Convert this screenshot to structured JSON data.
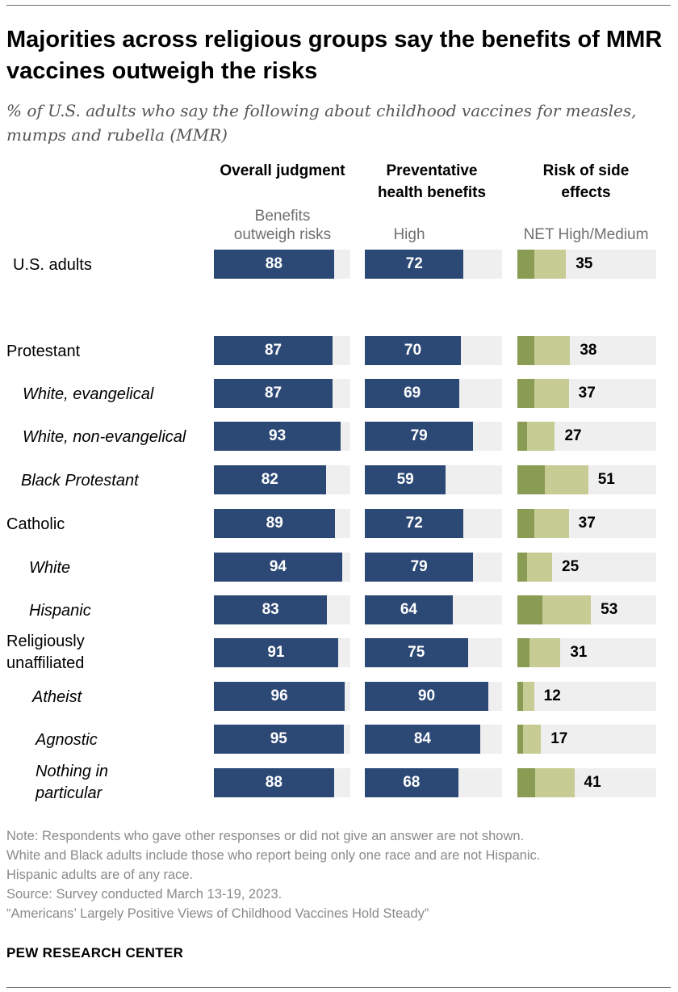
{
  "title": "Majorities across religious groups say the benefits of MMR vaccines outweigh the risks",
  "subtitle": "% of U.S. adults who say the following about childhood vaccines for measles, mumps and rubella (MMR)",
  "colors": {
    "primary_bar": "#2c4875",
    "risk_high": "#8a9b53",
    "risk_medium": "#c6cc94",
    "track": "#efefef"
  },
  "chart_data": {
    "type": "bar",
    "columns": [
      {
        "header": "Overall judgment",
        "sublabel": "Benefits\noutweigh risks"
      },
      {
        "header": "Preventative\nhealth benefits",
        "sublabel": "High"
      },
      {
        "header": "Risk of side\neffects",
        "sublabel": "NET High/Medium"
      }
    ],
    "categories": [
      "U.S. adults",
      "Protestant",
      "White, evangelical",
      "White, non-evangelical",
      "Black Protestant",
      "Catholic",
      "White",
      "Hispanic",
      "Religiously\nunaffiliated",
      "Atheist",
      "Agnostic",
      "Nothing in\nparticular"
    ],
    "subgroup": [
      false,
      false,
      true,
      true,
      true,
      false,
      true,
      true,
      false,
      true,
      true,
      true
    ],
    "series": [
      {
        "name": "Benefits outweigh risks",
        "values": [
          88,
          87,
          87,
          93,
          82,
          89,
          94,
          83,
          91,
          96,
          95,
          88
        ]
      },
      {
        "name": "High",
        "values": [
          72,
          70,
          69,
          79,
          59,
          72,
          79,
          64,
          75,
          90,
          84,
          68
        ]
      },
      {
        "name": "NET High/Medium",
        "values": [
          35,
          38,
          37,
          27,
          51,
          37,
          25,
          53,
          31,
          12,
          17,
          41
        ],
        "high_segment": [
          12,
          12,
          12,
          7,
          20,
          12,
          7,
          18,
          9,
          4,
          4,
          13
        ]
      }
    ],
    "ylim": [
      0,
      100
    ]
  },
  "notes": [
    "Note: Respondents who gave other responses or did not give an answer are not shown.",
    "White and Black adults include those who report being only one race and are not Hispanic.",
    "Hispanic adults are of any race.",
    "Source: Survey conducted March 13-19, 2023.",
    "“Americans’ Largely Positive Views of Childhood Vaccines Hold Steady”"
  ],
  "brand": "PEW RESEARCH CENTER"
}
